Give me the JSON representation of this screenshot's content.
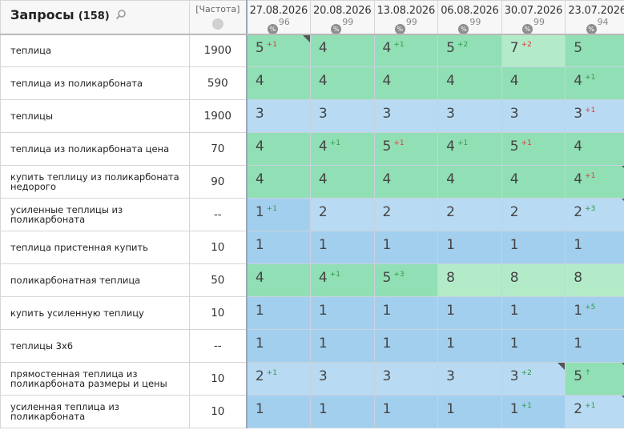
{
  "header": {
    "queries_title": "Запросы",
    "queries_count": "(158)",
    "frequency_label": "[Частота]",
    "dates": [
      {
        "date": "27.08.2026",
        "pct": "96"
      },
      {
        "date": "20.08.2026",
        "pct": "99"
      },
      {
        "date": "13.08.2026",
        "pct": "99"
      },
      {
        "date": "06.08.2026",
        "pct": "99"
      },
      {
        "date": "30.07.2026",
        "pct": "99"
      },
      {
        "date": "23.07.2026",
        "pct": "94"
      }
    ]
  },
  "rows": [
    {
      "query": "теплица",
      "freq": "1900",
      "positions": [
        {
          "v": "5",
          "d": "+1",
          "dir": "down",
          "c": "green",
          "corner": true
        },
        {
          "v": "4",
          "d": "",
          "dir": "",
          "c": "green",
          "corner": false
        },
        {
          "v": "4",
          "d": "+1",
          "dir": "up",
          "c": "green",
          "corner": false
        },
        {
          "v": "5",
          "d": "+2",
          "dir": "up",
          "c": "green",
          "corner": false
        },
        {
          "v": "7",
          "d": "+2",
          "dir": "down",
          "c": "lgreen",
          "corner": false
        },
        {
          "v": "5",
          "d": "",
          "dir": "",
          "c": "green",
          "corner": false
        }
      ]
    },
    {
      "query": "теплица из поликарбоната",
      "freq": "590",
      "positions": [
        {
          "v": "4",
          "d": "",
          "dir": "",
          "c": "green",
          "corner": false
        },
        {
          "v": "4",
          "d": "",
          "dir": "",
          "c": "green",
          "corner": false
        },
        {
          "v": "4",
          "d": "",
          "dir": "",
          "c": "green",
          "corner": false
        },
        {
          "v": "4",
          "d": "",
          "dir": "",
          "c": "green",
          "corner": false
        },
        {
          "v": "4",
          "d": "",
          "dir": "",
          "c": "green",
          "corner": false
        },
        {
          "v": "4",
          "d": "+1",
          "dir": "up",
          "c": "green",
          "corner": false
        }
      ]
    },
    {
      "query": "теплицы",
      "freq": "1900",
      "positions": [
        {
          "v": "3",
          "d": "",
          "dir": "",
          "c": "lblue",
          "corner": false
        },
        {
          "v": "3",
          "d": "",
          "dir": "",
          "c": "lblue",
          "corner": false
        },
        {
          "v": "3",
          "d": "",
          "dir": "",
          "c": "lblue",
          "corner": false
        },
        {
          "v": "3",
          "d": "",
          "dir": "",
          "c": "lblue",
          "corner": false
        },
        {
          "v": "3",
          "d": "",
          "dir": "",
          "c": "lblue",
          "corner": false
        },
        {
          "v": "3",
          "d": "+1",
          "dir": "down",
          "c": "lblue",
          "corner": false
        }
      ]
    },
    {
      "query": "теплица из поликарбоната цена",
      "freq": "70",
      "positions": [
        {
          "v": "4",
          "d": "",
          "dir": "",
          "c": "green",
          "corner": false
        },
        {
          "v": "4",
          "d": "+1",
          "dir": "up",
          "c": "green",
          "corner": false
        },
        {
          "v": "5",
          "d": "+1",
          "dir": "down",
          "c": "green",
          "corner": false
        },
        {
          "v": "4",
          "d": "+1",
          "dir": "up",
          "c": "green",
          "corner": false
        },
        {
          "v": "5",
          "d": "+1",
          "dir": "down",
          "c": "green",
          "corner": false
        },
        {
          "v": "4",
          "d": "",
          "dir": "",
          "c": "green",
          "corner": false
        }
      ]
    },
    {
      "query": "купить теплицу из поликарбоната недорого",
      "freq": "90",
      "positions": [
        {
          "v": "4",
          "d": "",
          "dir": "",
          "c": "green",
          "corner": false
        },
        {
          "v": "4",
          "d": "",
          "dir": "",
          "c": "green",
          "corner": false
        },
        {
          "v": "4",
          "d": "",
          "dir": "",
          "c": "green",
          "corner": false
        },
        {
          "v": "4",
          "d": "",
          "dir": "",
          "c": "green",
          "corner": false
        },
        {
          "v": "4",
          "d": "",
          "dir": "",
          "c": "green",
          "corner": false
        },
        {
          "v": "4",
          "d": "+1",
          "dir": "down",
          "c": "green",
          "corner": true
        }
      ]
    },
    {
      "query": "усиленные теплицы из поликарбоната",
      "freq": "--",
      "positions": [
        {
          "v": "1",
          "d": "+1",
          "dir": "up",
          "c": "blue",
          "corner": false
        },
        {
          "v": "2",
          "d": "",
          "dir": "",
          "c": "lblue",
          "corner": false
        },
        {
          "v": "2",
          "d": "",
          "dir": "",
          "c": "lblue",
          "corner": false
        },
        {
          "v": "2",
          "d": "",
          "dir": "",
          "c": "lblue",
          "corner": false
        },
        {
          "v": "2",
          "d": "",
          "dir": "",
          "c": "lblue",
          "corner": false
        },
        {
          "v": "2",
          "d": "+3",
          "dir": "up",
          "c": "lblue",
          "corner": true
        }
      ]
    },
    {
      "query": "теплица пристенная купить",
      "freq": "10",
      "positions": [
        {
          "v": "1",
          "d": "",
          "dir": "",
          "c": "blue",
          "corner": false
        },
        {
          "v": "1",
          "d": "",
          "dir": "",
          "c": "blue",
          "corner": false
        },
        {
          "v": "1",
          "d": "",
          "dir": "",
          "c": "blue",
          "corner": false
        },
        {
          "v": "1",
          "d": "",
          "dir": "",
          "c": "blue",
          "corner": false
        },
        {
          "v": "1",
          "d": "",
          "dir": "",
          "c": "blue",
          "corner": false
        },
        {
          "v": "1",
          "d": "",
          "dir": "",
          "c": "blue",
          "corner": false
        }
      ]
    },
    {
      "query": "поликарбонатная теплица",
      "freq": "50",
      "positions": [
        {
          "v": "4",
          "d": "",
          "dir": "",
          "c": "green",
          "corner": false
        },
        {
          "v": "4",
          "d": "+1",
          "dir": "up",
          "c": "green",
          "corner": false
        },
        {
          "v": "5",
          "d": "+3",
          "dir": "up",
          "c": "green",
          "corner": false
        },
        {
          "v": "8",
          "d": "",
          "dir": "",
          "c": "lgreen",
          "corner": false
        },
        {
          "v": "8",
          "d": "",
          "dir": "",
          "c": "lgreen",
          "corner": false
        },
        {
          "v": "8",
          "d": "",
          "dir": "",
          "c": "lgreen",
          "corner": false
        }
      ]
    },
    {
      "query": "купить усиленную теплицу",
      "freq": "10",
      "positions": [
        {
          "v": "1",
          "d": "",
          "dir": "",
          "c": "blue",
          "corner": false
        },
        {
          "v": "1",
          "d": "",
          "dir": "",
          "c": "blue",
          "corner": false
        },
        {
          "v": "1",
          "d": "",
          "dir": "",
          "c": "blue",
          "corner": false
        },
        {
          "v": "1",
          "d": "",
          "dir": "",
          "c": "blue",
          "corner": false
        },
        {
          "v": "1",
          "d": "",
          "dir": "",
          "c": "blue",
          "corner": false
        },
        {
          "v": "1",
          "d": "+5",
          "dir": "up",
          "c": "blue",
          "corner": false
        }
      ]
    },
    {
      "query": "теплицы 3х6",
      "freq": "--",
      "positions": [
        {
          "v": "1",
          "d": "",
          "dir": "",
          "c": "blue",
          "corner": false
        },
        {
          "v": "1",
          "d": "",
          "dir": "",
          "c": "blue",
          "corner": false
        },
        {
          "v": "1",
          "d": "",
          "dir": "",
          "c": "blue",
          "corner": false
        },
        {
          "v": "1",
          "d": "",
          "dir": "",
          "c": "blue",
          "corner": false
        },
        {
          "v": "1",
          "d": "",
          "dir": "",
          "c": "blue",
          "corner": false
        },
        {
          "v": "1",
          "d": "",
          "dir": "",
          "c": "blue",
          "corner": false
        }
      ]
    },
    {
      "query": "прямостенная теплица из поликарбоната размеры и цены",
      "freq": "10",
      "positions": [
        {
          "v": "2",
          "d": "+1",
          "dir": "up",
          "c": "lblue",
          "corner": false
        },
        {
          "v": "3",
          "d": "",
          "dir": "",
          "c": "lblue",
          "corner": false
        },
        {
          "v": "3",
          "d": "",
          "dir": "",
          "c": "lblue",
          "corner": false
        },
        {
          "v": "3",
          "d": "",
          "dir": "",
          "c": "lblue",
          "corner": false
        },
        {
          "v": "3",
          "d": "+2",
          "dir": "up",
          "c": "lblue",
          "corner": true
        },
        {
          "v": "5",
          "d": "↑",
          "dir": "up",
          "c": "green",
          "corner": true
        }
      ]
    },
    {
      "query": "усиленная теплица из поликарбоната",
      "freq": "10",
      "positions": [
        {
          "v": "1",
          "d": "",
          "dir": "",
          "c": "blue",
          "corner": false
        },
        {
          "v": "1",
          "d": "",
          "dir": "",
          "c": "blue",
          "corner": false
        },
        {
          "v": "1",
          "d": "",
          "dir": "",
          "c": "blue",
          "corner": false
        },
        {
          "v": "1",
          "d": "",
          "dir": "",
          "c": "blue",
          "corner": false
        },
        {
          "v": "1",
          "d": "+1",
          "dir": "up",
          "c": "blue",
          "corner": false
        },
        {
          "v": "2",
          "d": "+1",
          "dir": "up",
          "c": "lblue",
          "corner": true
        }
      ]
    }
  ]
}
